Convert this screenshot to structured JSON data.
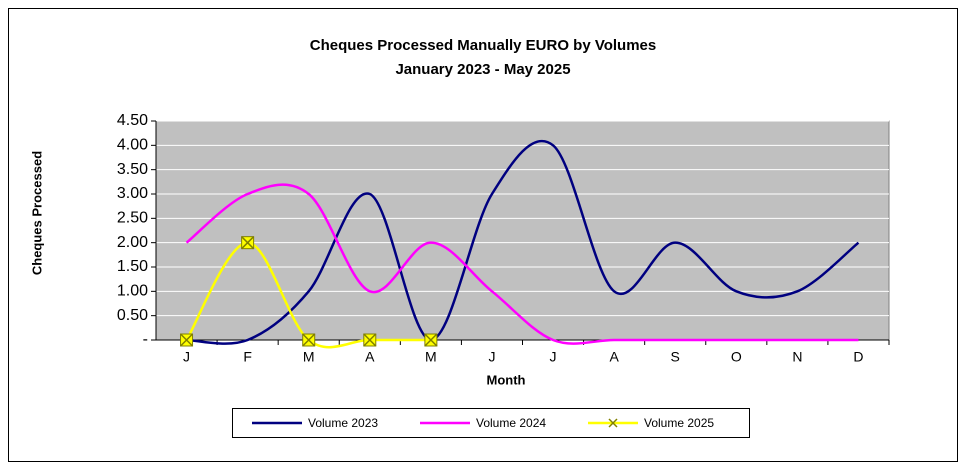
{
  "chart_data": {
    "type": "line",
    "title": "Cheques Processed Manually EURO by Volumes",
    "subtitle": "January 2023 - May 2025",
    "x_label": "Month",
    "y_label": "Cheques Processed",
    "categories": [
      "J",
      "F",
      "M",
      "A",
      "M",
      "J",
      "J",
      "A",
      "S",
      "O",
      "N",
      "D"
    ],
    "series": [
      {
        "name": "Volume 2023",
        "color": "#000080",
        "values": [
          0,
          0,
          1,
          3,
          0,
          3,
          4,
          1,
          2,
          1,
          1,
          2
        ]
      },
      {
        "name": "Volume 2024",
        "color": "#ff00ff",
        "values": [
          2,
          3,
          3,
          1,
          2,
          1,
          0,
          0,
          0,
          0,
          0,
          0
        ]
      },
      {
        "name": "Volume 2025",
        "color": "#ffff00",
        "marker": "x",
        "values": [
          0,
          2,
          0,
          0,
          0,
          null,
          null,
          null,
          null,
          null,
          null,
          null
        ]
      }
    ],
    "ylim": [
      0,
      4.5
    ],
    "yticks": [
      {
        "value": 0,
        "label": "-"
      },
      {
        "value": 0.5,
        "label": "0.50"
      },
      {
        "value": 1,
        "label": "1.00"
      },
      {
        "value": 1.5,
        "label": "1.50"
      },
      {
        "value": 2,
        "label": "2.00"
      },
      {
        "value": 2.5,
        "label": "2.50"
      },
      {
        "value": 3,
        "label": "3.00"
      },
      {
        "value": 3.5,
        "label": "3.50"
      },
      {
        "value": 4,
        "label": "4.00"
      },
      {
        "value": 4.5,
        "label": "4.50"
      }
    ],
    "grid": true,
    "smooth": true,
    "legend": "bottom"
  }
}
